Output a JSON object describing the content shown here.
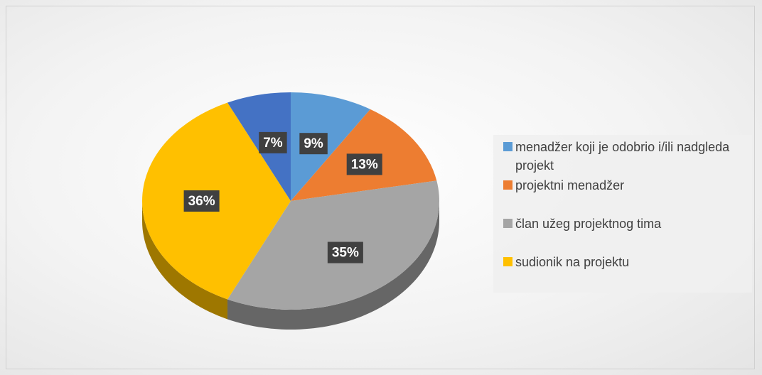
{
  "chart_data": {
    "type": "pie",
    "categories": [
      "menadžer koji je odobrio i/ili nadgleda projekt",
      "projektni menadžer",
      "član užeg projektnog tima",
      "sudionik na projektu",
      null
    ],
    "values": [
      9,
      13,
      35,
      36,
      7
    ],
    "value_labels": [
      "9%",
      "13%",
      "35%",
      "36%",
      "7%"
    ],
    "colors": [
      "#5b9bd5",
      "#ed7d31",
      "#a5a5a5",
      "#ffc000",
      "#4472c4"
    ],
    "legend": "right"
  }
}
